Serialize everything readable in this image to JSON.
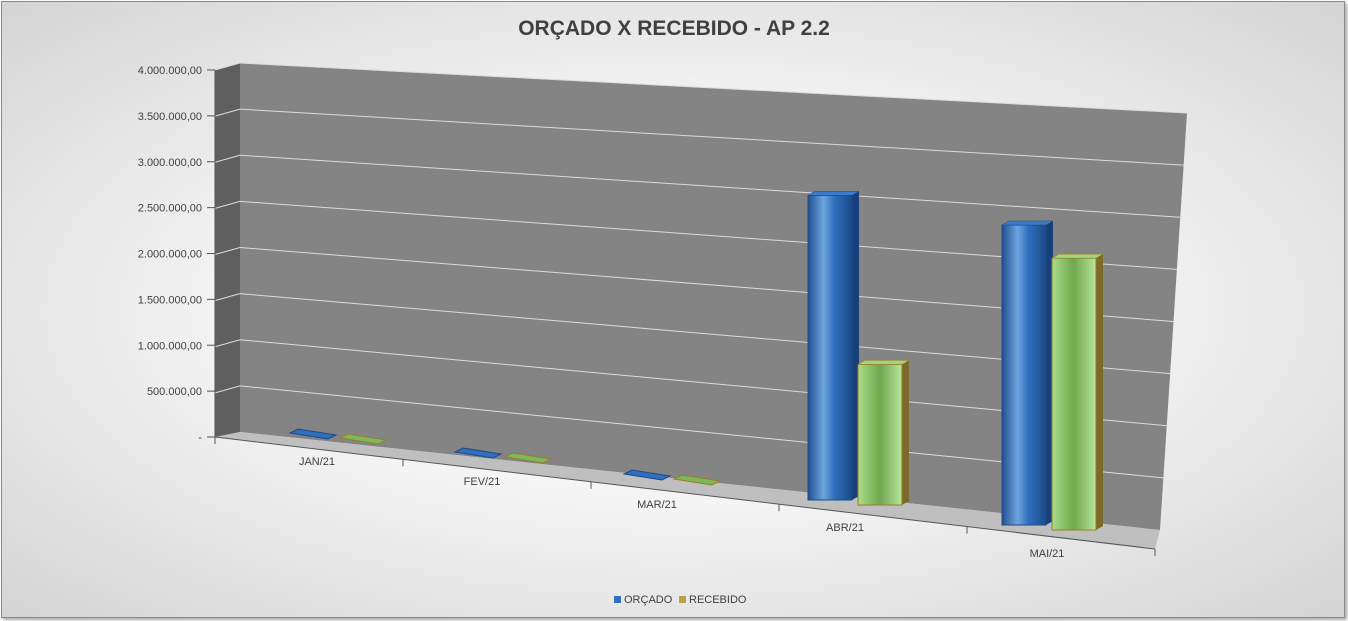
{
  "chart_data": {
    "type": "bar",
    "title": "ORÇADO X RECEBIDO - AP 2.2",
    "categories": [
      "JAN/21",
      "FEV/21",
      "MAR/21",
      "ABR/21",
      "MAI/21"
    ],
    "series": [
      {
        "name": "ORÇADO",
        "values": [
          0,
          0,
          0,
          3250000,
          3200000
        ],
        "color": "#2f6fbe"
      },
      {
        "name": "RECEBIDO",
        "values": [
          0,
          0,
          0,
          1500000,
          2900000
        ],
        "color": "#8fcf6a"
      }
    ],
    "y_ticks": [
      "-",
      "500.000,00",
      "1.000.000,00",
      "1.500.000,00",
      "2.000.000,00",
      "2.500.000,00",
      "3.000.000,00",
      "3.500.000,00",
      "4.000.000,00"
    ],
    "ylim": [
      0,
      4000000
    ],
    "grid": true,
    "legend_position": "bottom"
  }
}
